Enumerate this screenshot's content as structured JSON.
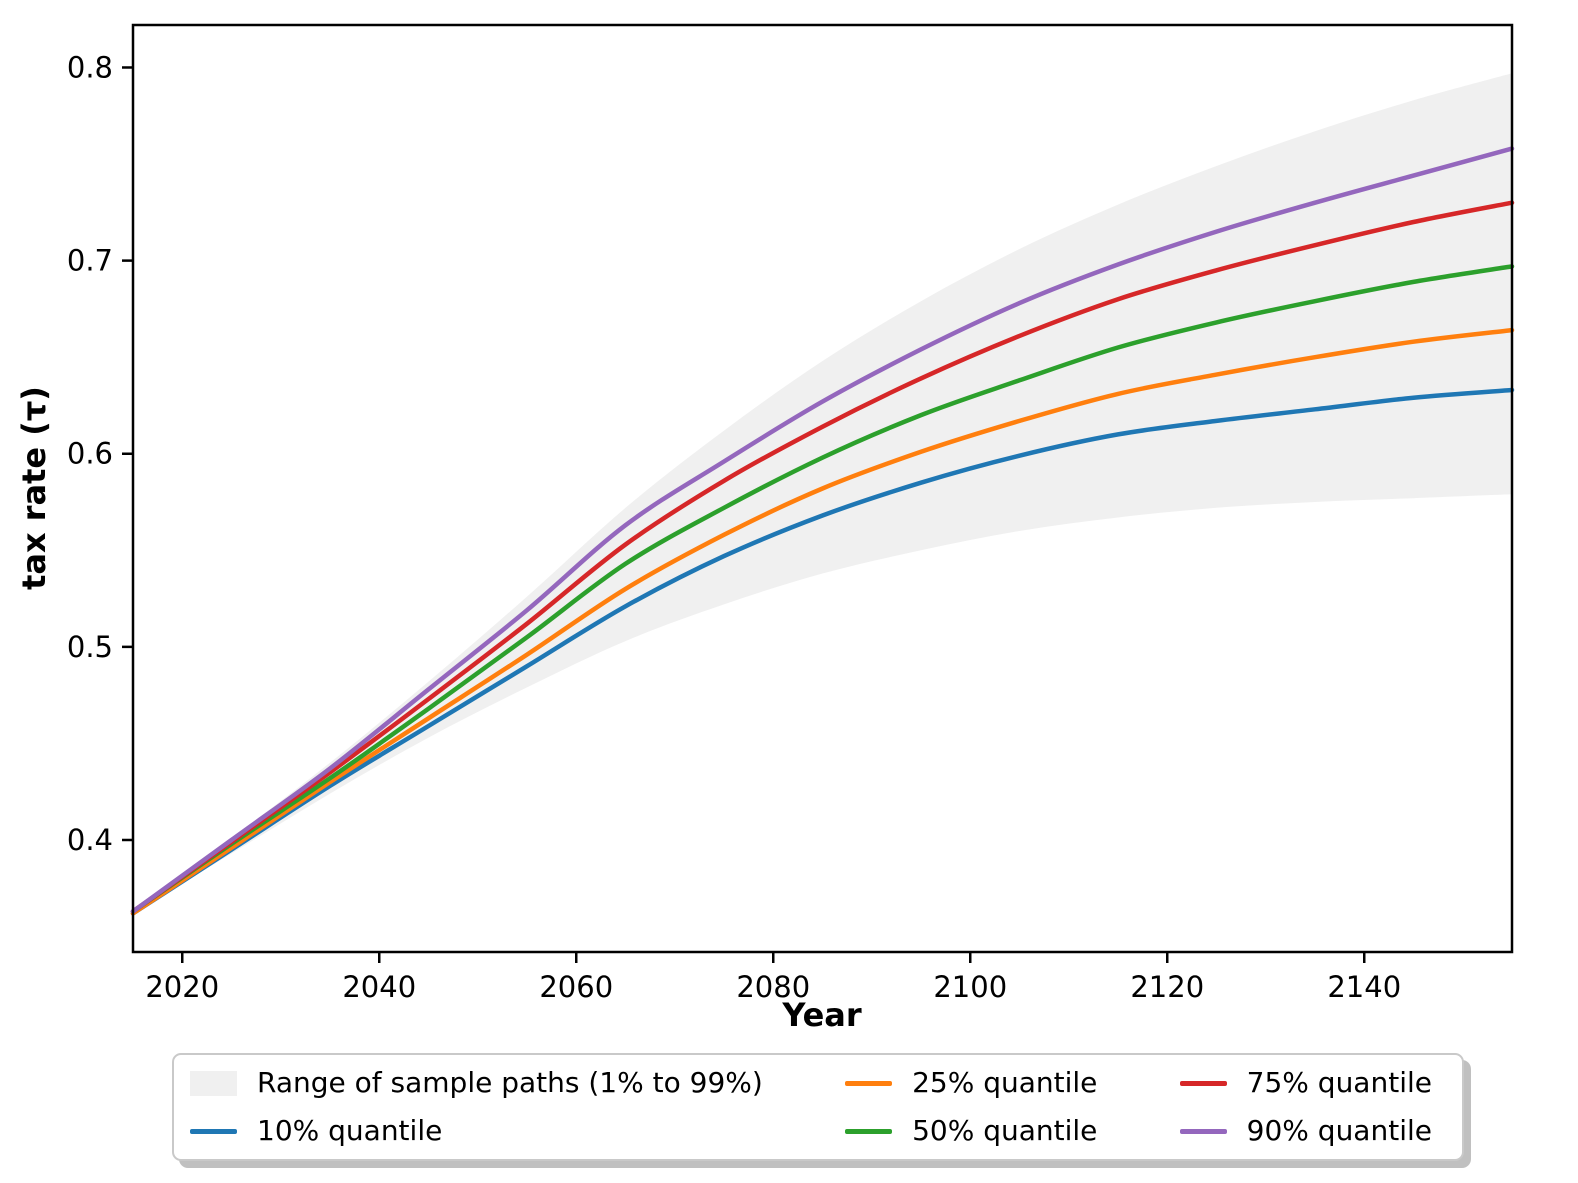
{
  "figure": {
    "background": "#ffffff",
    "text_color": "#000000"
  },
  "chart_data": {
    "type": "line",
    "title": "",
    "xlabel": "Year",
    "ylabel": "tax rate (τ)",
    "grid": false,
    "legend_position": "lower center, below axes, 3 columns, shadow box",
    "xlim": [
      2015,
      2155
    ],
    "ylim": [
      0.342,
      0.822
    ],
    "x_ticks": [
      2020,
      2040,
      2060,
      2080,
      2100,
      2120,
      2140
    ],
    "y_ticks": [
      0.4,
      0.5,
      0.6,
      0.7,
      0.8
    ],
    "x": [
      2015,
      2025,
      2035,
      2045,
      2055,
      2065,
      2075,
      2085,
      2095,
      2105,
      2115,
      2125,
      2135,
      2145,
      2155
    ],
    "band": {
      "label": "Range of sample paths (1% to 99%)",
      "color": "#f0f0f0",
      "upper": [
        0.363,
        0.401,
        0.44,
        0.482,
        0.526,
        0.572,
        0.612,
        0.648,
        0.679,
        0.706,
        0.729,
        0.749,
        0.767,
        0.783,
        0.797
      ],
      "lower": [
        0.362,
        0.393,
        0.424,
        0.453,
        0.479,
        0.503,
        0.522,
        0.538,
        0.55,
        0.56,
        0.567,
        0.572,
        0.575,
        0.577,
        0.579
      ]
    },
    "series": [
      {
        "name": "10% quantile",
        "color": "#1f77b4",
        "values": [
          0.362,
          0.395,
          0.428,
          0.459,
          0.49,
          0.521,
          0.547,
          0.568,
          0.585,
          0.599,
          0.61,
          0.617,
          0.623,
          0.629,
          0.633
        ]
      },
      {
        "name": "25% quantile",
        "color": "#ff7f0e",
        "values": [
          0.362,
          0.396,
          0.43,
          0.463,
          0.496,
          0.53,
          0.558,
          0.582,
          0.601,
          0.617,
          0.631,
          0.641,
          0.65,
          0.658,
          0.664
        ]
      },
      {
        "name": "50% quantile",
        "color": "#2ca02c",
        "values": [
          0.363,
          0.398,
          0.432,
          0.468,
          0.505,
          0.543,
          0.572,
          0.598,
          0.62,
          0.638,
          0.655,
          0.668,
          0.679,
          0.689,
          0.697
        ]
      },
      {
        "name": "75% quantile",
        "color": "#d62728",
        "values": [
          0.363,
          0.399,
          0.435,
          0.473,
          0.512,
          0.553,
          0.586,
          0.614,
          0.639,
          0.661,
          0.68,
          0.695,
          0.708,
          0.72,
          0.73
        ]
      },
      {
        "name": "90% quantile",
        "color": "#9467bd",
        "values": [
          0.363,
          0.4,
          0.437,
          0.478,
          0.519,
          0.563,
          0.596,
          0.627,
          0.654,
          0.678,
          0.698,
          0.715,
          0.73,
          0.744,
          0.758
        ]
      }
    ]
  },
  "legend": {
    "columns": [
      {
        "entries": [
          {
            "label": "Range of sample paths (1% to 99%)",
            "swatch": "patch"
          },
          {
            "label": "10% quantile",
            "swatch": "line",
            "series": 0
          }
        ]
      },
      {
        "entries": [
          {
            "label": "25% quantile",
            "swatch": "line",
            "series": 1
          },
          {
            "label": "50% quantile",
            "swatch": "line",
            "series": 2
          }
        ]
      },
      {
        "entries": [
          {
            "label": "75% quantile",
            "swatch": "line",
            "series": 3
          },
          {
            "label": "90% quantile",
            "swatch": "line",
            "series": 4
          }
        ]
      }
    ]
  }
}
